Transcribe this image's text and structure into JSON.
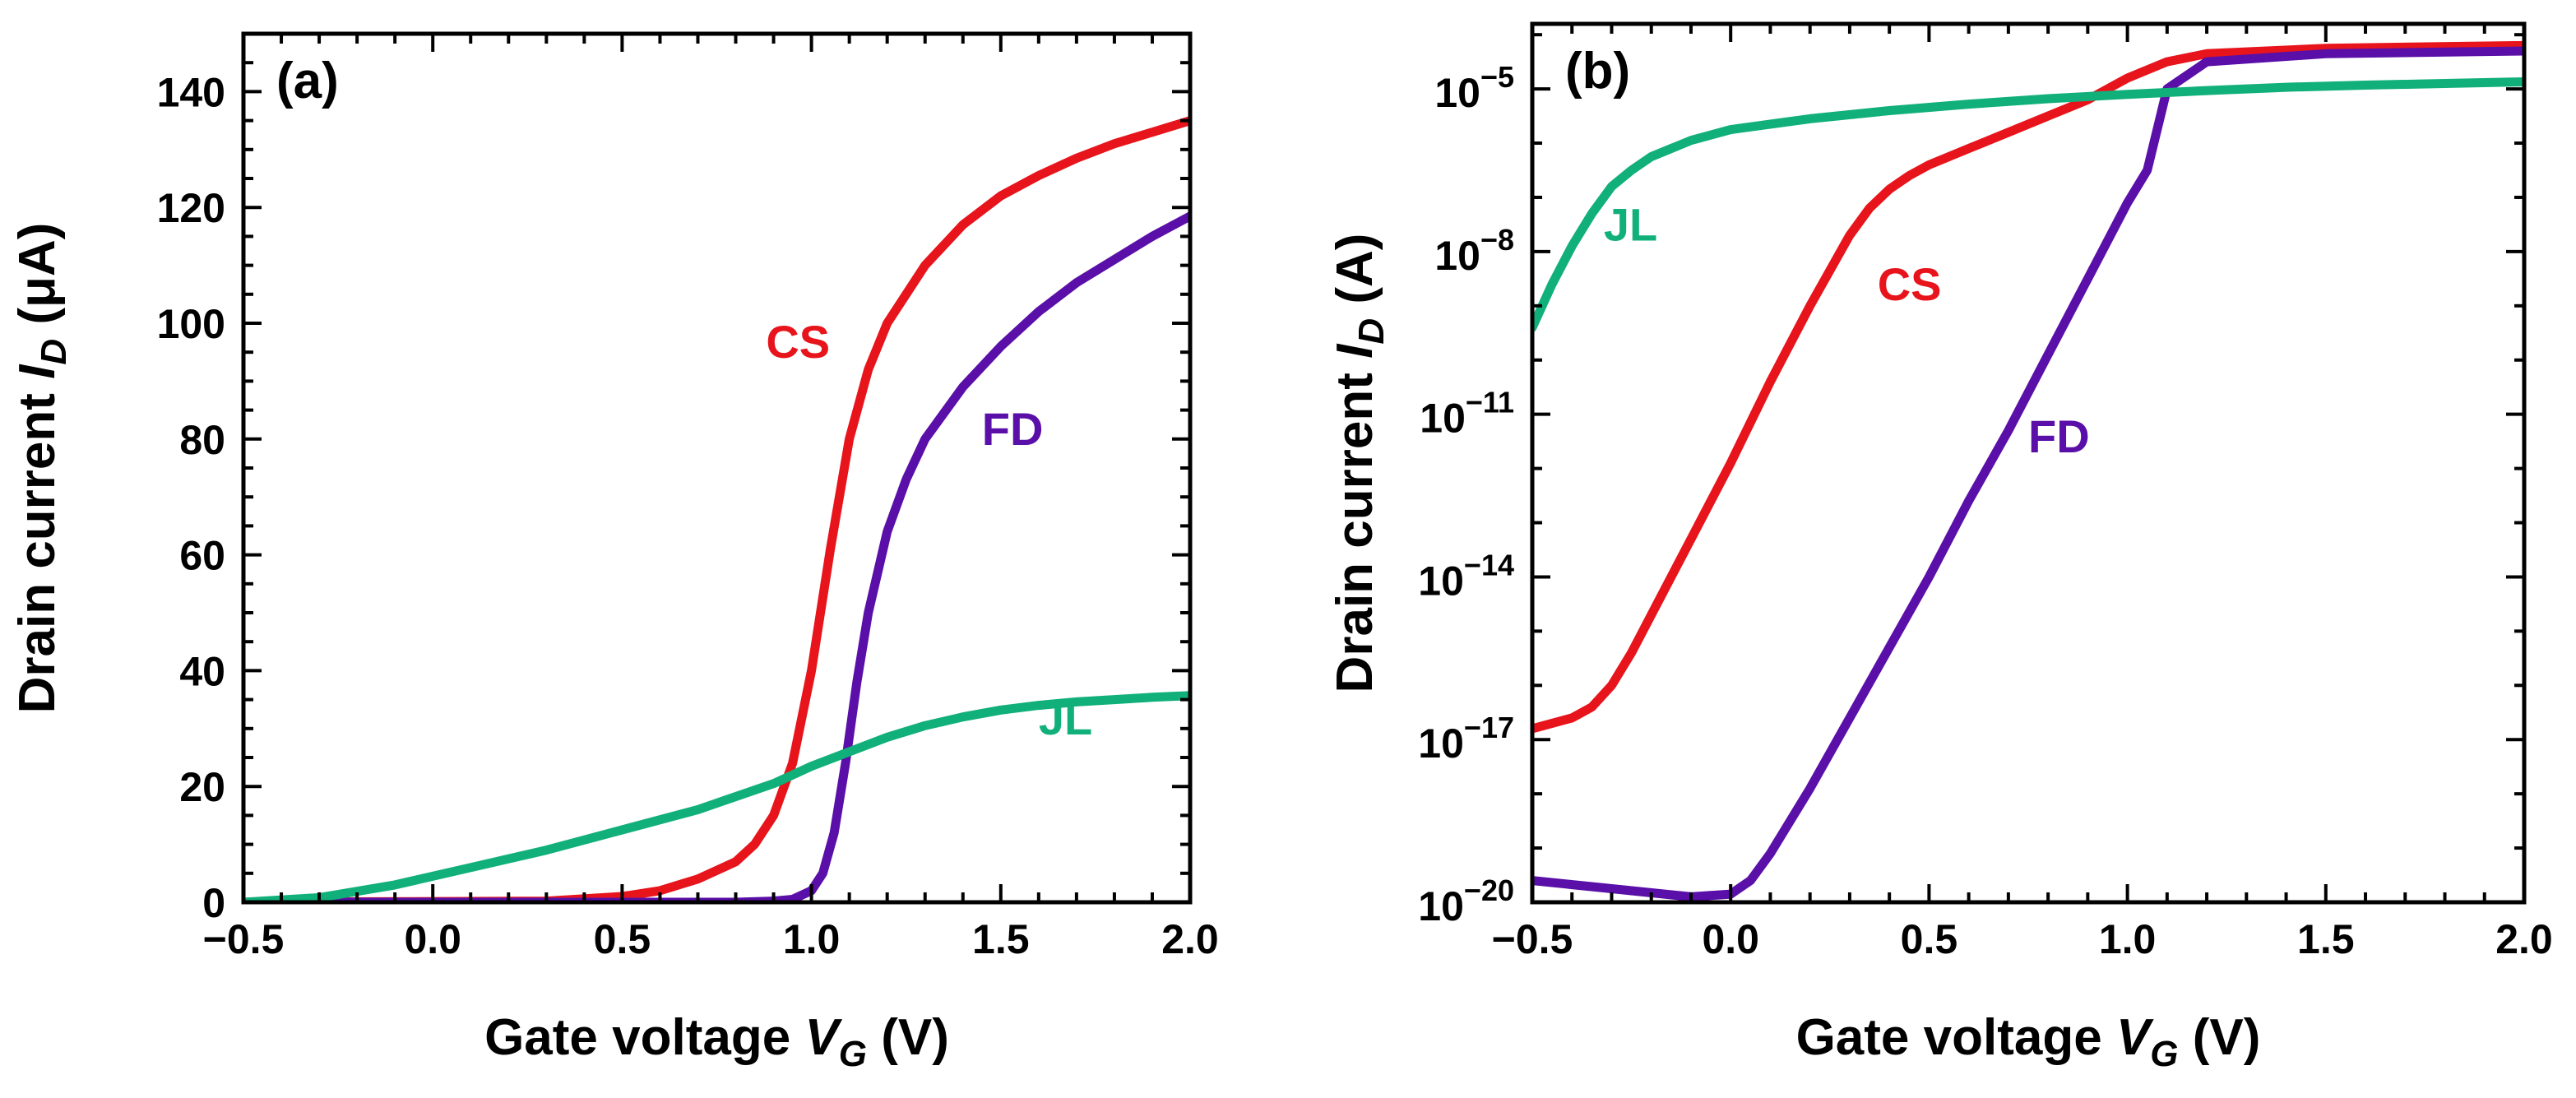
{
  "colors": {
    "CS": "#e8141c",
    "FD": "#5a0fa8",
    "JL": "#11b07a"
  },
  "chart_data": [
    {
      "id": "a",
      "type": "line",
      "panel_label": "(a)",
      "ylabel_main": "Drain current ",
      "ylabel_var": "I",
      "ylabel_sub": "D",
      "ylabel_unit": " (μA)",
      "xlabel_main": "Gate voltage ",
      "xlabel_var": "V",
      "xlabel_sub": "G",
      "xlabel_unit": " (V)",
      "xlim": [
        -0.5,
        2.0
      ],
      "ylim": [
        0,
        150
      ],
      "yscale": "linear",
      "xticks": [
        -0.5,
        0.0,
        0.5,
        1.0,
        1.5,
        2.0
      ],
      "xtick_labels": [
        "−0.5",
        "0.0",
        "0.5",
        "1.0",
        "1.5",
        "2.0"
      ],
      "yticks": [
        0,
        20,
        40,
        60,
        80,
        100,
        120,
        140
      ],
      "ytick_labels": [
        "0",
        "20",
        "40",
        "60",
        "80",
        "100",
        "120",
        "140"
      ],
      "series": [
        {
          "name": "CS",
          "label": "CS",
          "label_at": [
            0.88,
            94
          ],
          "x": [
            -0.5,
            0.3,
            0.5,
            0.6,
            0.7,
            0.8,
            0.85,
            0.9,
            0.95,
            1.0,
            1.05,
            1.1,
            1.15,
            1.2,
            1.3,
            1.4,
            1.5,
            1.6,
            1.7,
            1.8,
            1.9,
            2.0
          ],
          "y": [
            0,
            0.2,
            1,
            2,
            4,
            7,
            10,
            15,
            24,
            40,
            61,
            80,
            92,
            100,
            110,
            117,
            122,
            125.5,
            128.5,
            131,
            133,
            135
          ]
        },
        {
          "name": "FD",
          "label": "FD",
          "label_at": [
            1.45,
            79
          ],
          "x": [
            -0.5,
            0.8,
            0.9,
            0.95,
            1.0,
            1.03,
            1.06,
            1.09,
            1.12,
            1.15,
            1.2,
            1.25,
            1.3,
            1.4,
            1.5,
            1.6,
            1.7,
            1.8,
            1.9,
            2.0
          ],
          "y": [
            0,
            0,
            0.2,
            0.5,
            2,
            5,
            12,
            24,
            38,
            50,
            64,
            73,
            80,
            89,
            96,
            102,
            107,
            111,
            115,
            118.5
          ]
        },
        {
          "name": "JL",
          "label": "JL",
          "label_at": [
            1.6,
            29
          ],
          "x": [
            -0.5,
            -0.3,
            -0.1,
            0.1,
            0.3,
            0.5,
            0.7,
            0.9,
            1.0,
            1.1,
            1.2,
            1.3,
            1.4,
            1.5,
            1.6,
            1.7,
            1.8,
            1.9,
            2.0
          ],
          "y": [
            0,
            0.8,
            3,
            6,
            9,
            12.5,
            16,
            20.5,
            23.5,
            26,
            28.5,
            30.5,
            32,
            33.2,
            34,
            34.6,
            35,
            35.4,
            35.7
          ]
        }
      ]
    },
    {
      "id": "b",
      "type": "line",
      "panel_label": "(b)",
      "ylabel_main": "Drain current ",
      "ylabel_var": "I",
      "ylabel_sub": "D",
      "ylabel_unit": " (A)",
      "xlabel_main": "Gate voltage ",
      "xlabel_var": "V",
      "xlabel_sub": "G",
      "xlabel_unit": " (V)",
      "xlim": [
        -0.5,
        2.0
      ],
      "ylim_log10": [
        -20,
        -3.8
      ],
      "yscale": "log",
      "xticks": [
        -0.5,
        0.0,
        0.5,
        1.0,
        1.5,
        2.0
      ],
      "xtick_labels": [
        "−0.5",
        "0.0",
        "0.5",
        "1.0",
        "1.5",
        "2.0"
      ],
      "yticks_log10": [
        -20,
        -17,
        -14,
        -11,
        -8,
        -5
      ],
      "ytick_base": "10",
      "ytick_exponents": [
        "−20",
        "−17",
        "−14",
        "−11",
        "−8",
        "−5"
      ],
      "series": [
        {
          "name": "CS",
          "label": "CS",
          "label_at": [
            0.37,
            -8.9
          ],
          "x": [
            -0.5,
            -0.45,
            -0.4,
            -0.35,
            -0.3,
            -0.25,
            -0.2,
            -0.1,
            0.0,
            0.1,
            0.2,
            0.3,
            0.35,
            0.4,
            0.45,
            0.5,
            0.6,
            0.7,
            0.8,
            0.9,
            1.0,
            1.1,
            1.2,
            1.5,
            2.0
          ],
          "y_log10": [
            -16.8,
            -16.7,
            -16.6,
            -16.4,
            -16.0,
            -15.4,
            -14.7,
            -13.3,
            -11.9,
            -10.4,
            -9.0,
            -7.7,
            -7.2,
            -6.85,
            -6.6,
            -6.4,
            -6.1,
            -5.8,
            -5.5,
            -5.2,
            -4.8,
            -4.5,
            -4.35,
            -4.25,
            -4.2
          ]
        },
        {
          "name": "FD",
          "label": "FD",
          "label_at": [
            0.75,
            -11.7
          ],
          "x": [
            -0.5,
            -0.3,
            -0.1,
            0.0,
            0.05,
            0.1,
            0.2,
            0.3,
            0.4,
            0.5,
            0.6,
            0.7,
            0.8,
            0.9,
            1.0,
            1.05,
            1.1,
            1.2,
            1.5,
            2.0
          ],
          "y_log10": [
            -19.6,
            -19.75,
            -19.9,
            -19.85,
            -19.6,
            -19.1,
            -17.9,
            -16.6,
            -15.3,
            -14.0,
            -12.6,
            -11.3,
            -9.9,
            -8.5,
            -7.1,
            -6.5,
            -5.0,
            -4.5,
            -4.35,
            -4.3
          ]
        },
        {
          "name": "JL",
          "label": "JL",
          "label_at": [
            -0.32,
            -7.8
          ],
          "x": [
            -0.5,
            -0.45,
            -0.4,
            -0.35,
            -0.3,
            -0.25,
            -0.2,
            -0.1,
            0.0,
            0.2,
            0.4,
            0.6,
            0.8,
            1.0,
            1.2,
            1.4,
            1.6,
            1.8,
            2.0
          ],
          "y_log10": [
            -9.4,
            -8.6,
            -7.9,
            -7.3,
            -6.8,
            -6.5,
            -6.25,
            -5.95,
            -5.75,
            -5.55,
            -5.4,
            -5.28,
            -5.18,
            -5.1,
            -5.03,
            -4.97,
            -4.93,
            -4.9,
            -4.87
          ]
        }
      ]
    }
  ]
}
